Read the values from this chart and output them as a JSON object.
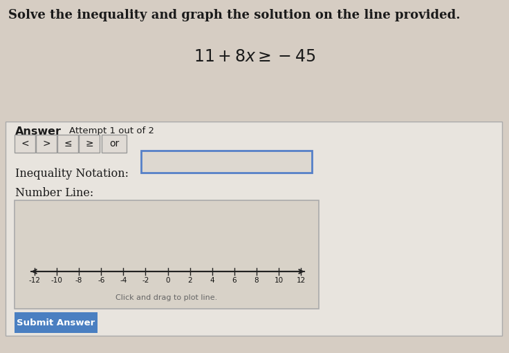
{
  "title": "Solve the inequality and graph the solution on the line provided.",
  "equation": "$11 + 8x \\geq -45$",
  "answer_label": "Answer",
  "attempt_label": "Attempt 1 out of 2",
  "buttons": [
    "<",
    ">",
    "≤",
    "≥",
    "or"
  ],
  "inequality_label": "Inequality Notation:",
  "numberline_label": "Number Line:",
  "numberline_ticks": [
    -12,
    -10,
    -8,
    -6,
    -4,
    -2,
    0,
    2,
    4,
    6,
    8,
    10,
    12
  ],
  "numberline_hint": "Click and drag to plot line.",
  "submit_label": "Submit Answer",
  "top_bg": "#d6cdc3",
  "panel_bg": "#e8e4de",
  "panel_border": "#aaaaaa",
  "title_color": "#1a1a1a",
  "equation_color": "#1a1a1a",
  "button_bg": "#e0dbd5",
  "button_border": "#999999",
  "inequality_box_border": "#5580c8",
  "inequality_box_bg": "#ddd8d0",
  "numberline_box_bg": "#d8d2c8",
  "numberline_box_border": "#aaaaaa",
  "submit_bg": "#4a7fc1",
  "submit_text": "#ffffff",
  "arrow_color": "#222222",
  "tick_color": "#222222",
  "tick_label_color": "#111111",
  "hint_color": "#666666",
  "fig_width": 7.36,
  "fig_height": 5.11,
  "dpi": 100
}
